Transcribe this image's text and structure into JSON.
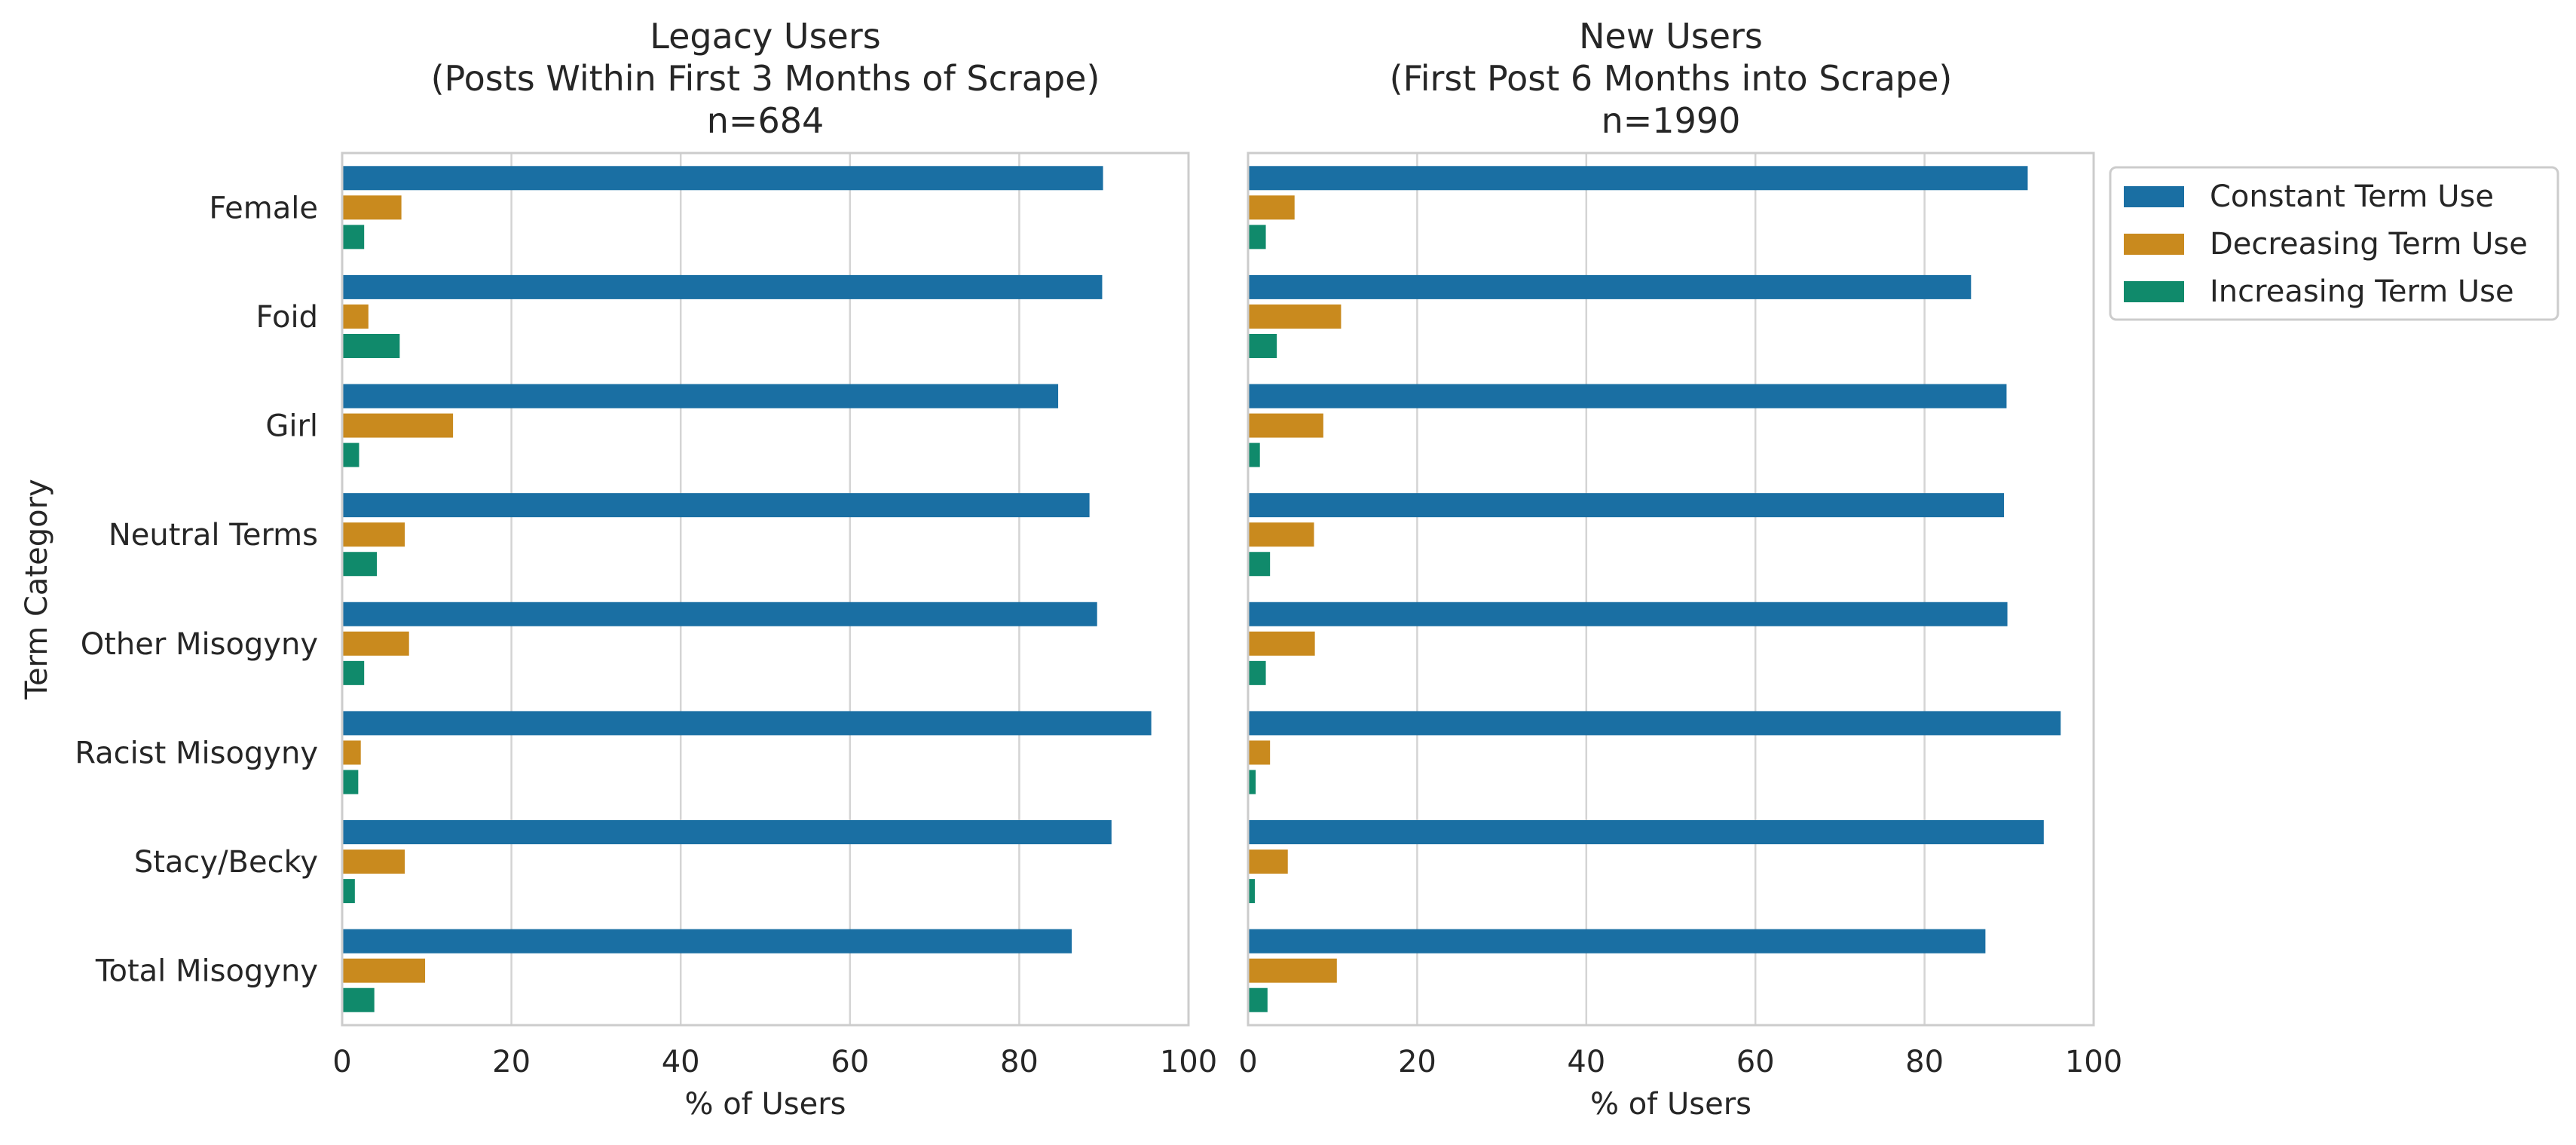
{
  "chart_data": [
    {
      "type": "bar",
      "orientation": "horizontal",
      "title_lines": [
        "Legacy Users",
        "(Posts Within First 3 Months of Scrape)",
        "n=684"
      ],
      "ylabel": "Term Category",
      "xlabel": "% of Users",
      "xlim": [
        0,
        100
      ],
      "xticks": [
        0,
        20,
        40,
        60,
        80,
        100
      ],
      "grid": "vertical",
      "categories": [
        "Female",
        "Foid",
        "Girl",
        "Neutral Terms",
        "Other Misogyny",
        "Racist Misogyny",
        "Stacy/Becky",
        "Total Misogyny"
      ],
      "series": [
        {
          "name": "Constant Term Use",
          "color": "#1a6fa3",
          "values": [
            89.9,
            89.8,
            84.6,
            88.3,
            89.2,
            95.6,
            90.9,
            86.2
          ]
        },
        {
          "name": "Decreasing Term Use",
          "color": "#c98a1e",
          "values": [
            7.0,
            3.1,
            13.1,
            7.4,
            7.9,
            2.2,
            7.4,
            9.8
          ]
        },
        {
          "name": "Increasing Term Use",
          "color": "#108a6b",
          "values": [
            2.6,
            6.8,
            2.0,
            4.1,
            2.6,
            1.9,
            1.5,
            3.8
          ]
        }
      ]
    },
    {
      "type": "bar",
      "orientation": "horizontal",
      "title_lines": [
        "New Users",
        "(First Post 6 Months into Scrape)",
        "n=1990"
      ],
      "ylabel": "",
      "xlabel": "% of Users",
      "xlim": [
        0,
        100
      ],
      "xticks": [
        0,
        20,
        40,
        60,
        80,
        100
      ],
      "grid": "vertical",
      "categories": [
        "Female",
        "Foid",
        "Girl",
        "Neutral Terms",
        "Other Misogyny",
        "Racist Misogyny",
        "Stacy/Becky",
        "Total Misogyny"
      ],
      "series": [
        {
          "name": "Constant Term Use",
          "color": "#1a6fa3",
          "values": [
            92.2,
            85.5,
            89.7,
            89.4,
            89.8,
            96.1,
            94.1,
            87.2
          ]
        },
        {
          "name": "Decreasing Term Use",
          "color": "#c98a1e",
          "values": [
            5.5,
            11.0,
            8.9,
            7.8,
            7.9,
            2.6,
            4.7,
            10.5
          ]
        },
        {
          "name": "Increasing Term Use",
          "color": "#108a6b",
          "values": [
            2.1,
            3.4,
            1.4,
            2.6,
            2.1,
            0.9,
            0.8,
            2.3
          ]
        }
      ]
    }
  ],
  "legend": {
    "placement": "upper-right, outside plot",
    "entries": [
      "Constant Term Use",
      "Decreasing Term Use",
      "Increasing Term Use"
    ]
  }
}
